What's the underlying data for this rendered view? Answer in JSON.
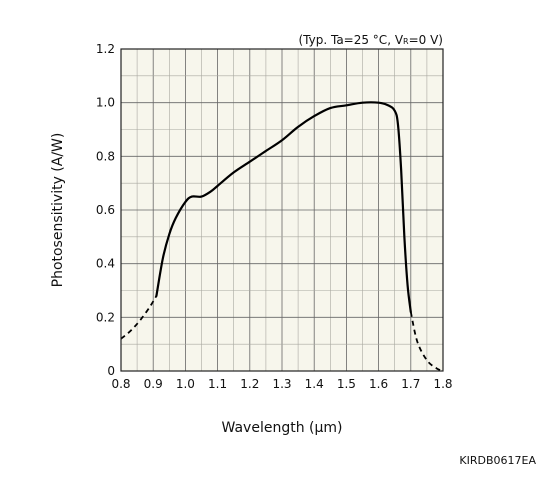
{
  "chart_data": {
    "type": "line",
    "conditions": {
      "prefix": "(Typ. Ta=25 °C, V",
      "subscript": "R",
      "suffix": "=0 V)"
    },
    "xlabel": "Wavelength (µm)",
    "ylabel": "Photosensitivity (A/W)",
    "xlim": [
      0.8,
      1.8
    ],
    "ylim": [
      0,
      1.2
    ],
    "x_ticks": [
      "0.8",
      "0.9",
      "1.0",
      "1.1",
      "1.2",
      "1.3",
      "1.4",
      "1.5",
      "1.6",
      "1.7",
      "1.8"
    ],
    "y_ticks": [
      "0",
      "0.2",
      "0.4",
      "0.6",
      "0.8",
      "1.0",
      "1.2"
    ],
    "grid": true,
    "series": [
      {
        "style": "dashed",
        "x": [
          0.8,
          0.83,
          0.86,
          0.89,
          0.91
        ],
        "y": [
          0.12,
          0.15,
          0.19,
          0.24,
          0.28
        ]
      },
      {
        "style": "solid",
        "x": [
          0.91,
          0.93,
          0.95,
          0.97,
          1.0,
          1.02,
          1.05,
          1.08,
          1.1,
          1.15,
          1.2,
          1.25,
          1.3,
          1.35,
          1.4,
          1.45,
          1.5,
          1.55,
          1.6,
          1.63,
          1.65,
          1.66,
          1.67,
          1.68,
          1.69,
          1.7
        ],
        "y": [
          0.28,
          0.42,
          0.51,
          0.57,
          0.63,
          0.65,
          0.65,
          0.67,
          0.69,
          0.74,
          0.78,
          0.82,
          0.86,
          0.91,
          0.95,
          0.98,
          0.99,
          1.0,
          1.0,
          0.99,
          0.97,
          0.92,
          0.75,
          0.5,
          0.32,
          0.22
        ]
      },
      {
        "style": "dashed",
        "x": [
          1.7,
          1.72,
          1.75,
          1.78,
          1.8
        ],
        "y": [
          0.22,
          0.11,
          0.04,
          0.01,
          0.0
        ]
      }
    ]
  },
  "figure_code": "KIRDB0617EA"
}
